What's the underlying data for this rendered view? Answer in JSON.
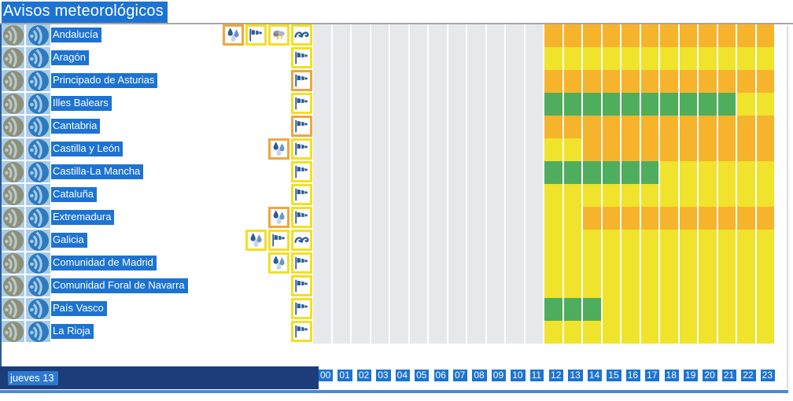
{
  "title": "Avisos meteorológicos",
  "footer": {
    "day_label": "jueves 13"
  },
  "hours": [
    "00",
    "01",
    "02",
    "03",
    "04",
    "05",
    "06",
    "07",
    "08",
    "09",
    "10",
    "11",
    "12",
    "13",
    "14",
    "15",
    "16",
    "17",
    "18",
    "19",
    "20",
    "21",
    "22",
    "23"
  ],
  "colors": {
    "selection": "#1d73d2",
    "selection_light": "#a9ccea",
    "navy": "#1c3d7a",
    "day_highlight": "#2d79cf",
    "bottom_line": "#4c86df",
    "rss_gray_circle": "#8d9077",
    "rss_gray_glyph": "#b9c8cc",
    "rss_blue_circle": "#2e7abf",
    "rss_blue_glyph": "#a5caea",
    "border_orange": "#f0a63d",
    "border_yellow": "#f2df25"
  },
  "timeline_colors": {
    "O": "#f6b32c",
    "Y": "#f0e32b",
    "G": "#4fad5e",
    ".": "#e7e8eb"
  },
  "regions": [
    {
      "name": "Andalucía",
      "warnings": [
        {
          "type": "rain",
          "severity": "orange"
        },
        {
          "type": "wind",
          "severity": "yellow"
        },
        {
          "type": "storm",
          "severity": "yellow"
        },
        {
          "type": "waves",
          "severity": "yellow"
        }
      ],
      "timeline": "............OOOOOOOOOOOO"
    },
    {
      "name": "Aragón",
      "warnings": [
        {
          "type": "wind",
          "severity": "yellow"
        }
      ],
      "timeline": "............YYYYYYYYYYYY"
    },
    {
      "name": "Principado de Asturias",
      "warnings": [
        {
          "type": "wind",
          "severity": "orange"
        }
      ],
      "timeline": "............OOOOOOOOOOOO"
    },
    {
      "name": "Illes Balears",
      "warnings": [
        {
          "type": "wind",
          "severity": "yellow"
        }
      ],
      "timeline": "............GGGGGGGGGGYY"
    },
    {
      "name": "Cantabria",
      "warnings": [
        {
          "type": "wind",
          "severity": "orange"
        }
      ],
      "timeline": "............OOOOOOOOOOOO"
    },
    {
      "name": "Castilla y León",
      "warnings": [
        {
          "type": "rain",
          "severity": "orange"
        },
        {
          "type": "wind",
          "severity": "yellow"
        }
      ],
      "timeline": "............YYOOOOOOOOOO"
    },
    {
      "name": "Castilla-La Mancha",
      "warnings": [
        {
          "type": "wind",
          "severity": "yellow"
        }
      ],
      "timeline": "............GGGGGGYYYYYY"
    },
    {
      "name": "Cataluña",
      "warnings": [
        {
          "type": "wind",
          "severity": "yellow"
        }
      ],
      "timeline": "............YYYYYYYYYYYY"
    },
    {
      "name": "Extremadura",
      "warnings": [
        {
          "type": "rain",
          "severity": "orange"
        },
        {
          "type": "wind",
          "severity": "yellow"
        }
      ],
      "timeline": "............YYOOOOOOOOOO"
    },
    {
      "name": "Galicia",
      "warnings": [
        {
          "type": "rain",
          "severity": "yellow"
        },
        {
          "type": "wind",
          "severity": "yellow"
        },
        {
          "type": "waves",
          "severity": "yellow"
        }
      ],
      "timeline": "............YYYYYYYYYYYY"
    },
    {
      "name": "Comunidad de Madrid",
      "warnings": [
        {
          "type": "rain",
          "severity": "yellow"
        },
        {
          "type": "wind",
          "severity": "yellow"
        }
      ],
      "timeline": "............YYYYYYYYYYYY"
    },
    {
      "name": "Comunidad Foral de Navarra",
      "warnings": [
        {
          "type": "wind",
          "severity": "yellow"
        }
      ],
      "timeline": "............YYYYYYYYYYYY"
    },
    {
      "name": "País Vasco",
      "warnings": [
        {
          "type": "wind",
          "severity": "yellow"
        }
      ],
      "timeline": "............GGGYYYYYYYYY"
    },
    {
      "name": "La Rioja",
      "warnings": [
        {
          "type": "wind",
          "severity": "yellow"
        }
      ],
      "timeline": "............YYYYYYYYYYYY"
    }
  ]
}
